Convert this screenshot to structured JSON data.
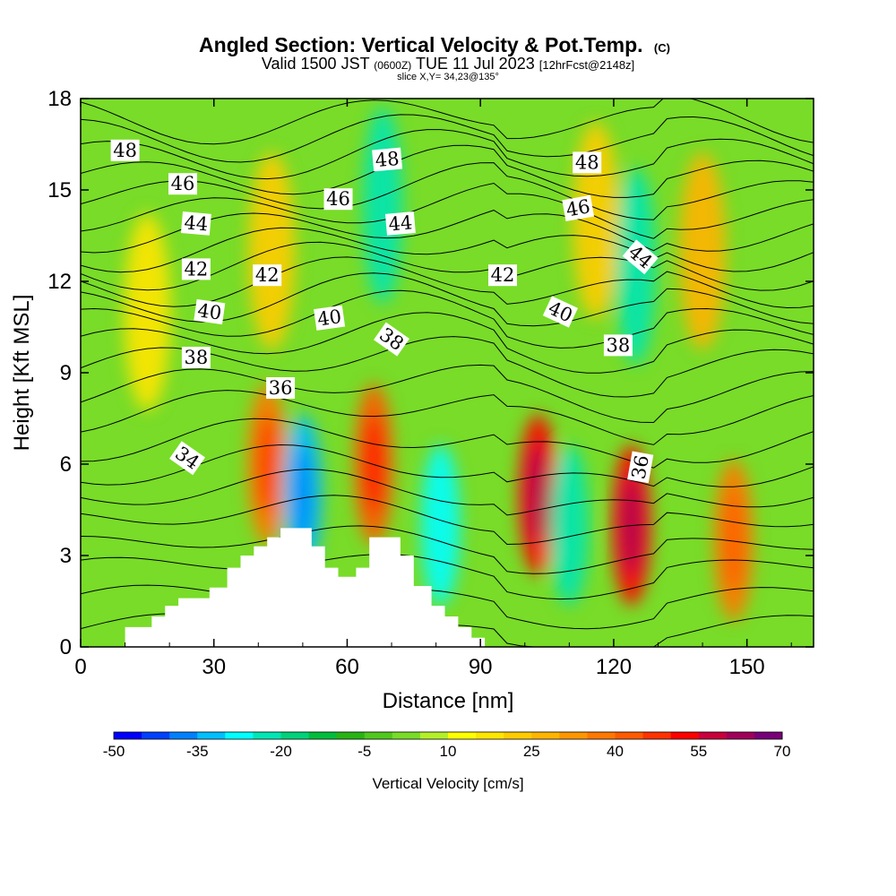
{
  "chart_data": {
    "type": "heatmap",
    "title": "Angled Section: Vertical Velocity & Pot.Temp.",
    "title_mark": "(C)",
    "subtitle_a": "Valid 1500 JST",
    "subtitle_b": "(0600Z)",
    "subtitle_c": "TUE 11 Jul 2023",
    "subtitle_d": "[12hrFcst@2148z]",
    "subtitle_line2": "slice X,Y= 34,23@135°",
    "xlabel": "Distance [nm]",
    "ylabel": "Height [Kft MSL]",
    "xlim": [
      0,
      165
    ],
    "ylim": [
      0,
      18
    ],
    "x_ticks": [
      "0",
      "30",
      "60",
      "90",
      "120",
      "150"
    ],
    "y_ticks": [
      "0",
      "3",
      "6",
      "9",
      "12",
      "15",
      "18"
    ],
    "colorbar": {
      "label": "Vertical Velocity [cm/s]",
      "tick_labels": [
        "-50",
        "-35",
        "-20",
        "-5",
        "10",
        "25",
        "40",
        "55",
        "70"
      ],
      "levels": [
        -50,
        -45,
        -40,
        -35,
        -30,
        -25,
        -20,
        -15,
        -10,
        -5,
        0,
        5,
        10,
        15,
        20,
        25,
        30,
        35,
        40,
        45,
        50,
        55,
        60,
        65,
        70
      ],
      "colors": [
        "#0000ff",
        "#0040ff",
        "#0080ff",
        "#00bfff",
        "#00ffff",
        "#00e6b4",
        "#00d27a",
        "#00be3c",
        "#28b414",
        "#50c81e",
        "#78dc28",
        "#b4f028",
        "#ffff00",
        "#ffe600",
        "#ffcc00",
        "#ffb400",
        "#ff9600",
        "#ff7800",
        "#ff5a00",
        "#ff3200",
        "#ff0000",
        "#c8003c",
        "#a0005a",
        "#780078"
      ]
    },
    "velocity_features": [
      {
        "x": 15,
        "y": 11,
        "value": 15
      },
      {
        "x": 42,
        "y": 6,
        "value": 38
      },
      {
        "x": 43,
        "y": 13,
        "value": 20
      },
      {
        "x": 50,
        "y": 5,
        "value": -32
      },
      {
        "x": 66,
        "y": 6,
        "value": 42
      },
      {
        "x": 68,
        "y": 14.5,
        "value": -25
      },
      {
        "x": 81,
        "y": 4,
        "value": -30
      },
      {
        "x": 103,
        "y": 5,
        "value": 52
      },
      {
        "x": 110,
        "y": 4,
        "value": -22
      },
      {
        "x": 116,
        "y": 14,
        "value": 20
      },
      {
        "x": 124,
        "y": 4,
        "value": 52
      },
      {
        "x": 125,
        "y": 12.5,
        "value": -25
      },
      {
        "x": 140,
        "y": 13,
        "value": 28
      },
      {
        "x": 147,
        "y": 3.5,
        "value": 35
      }
    ],
    "isentrope_labels": [
      {
        "text": "48",
        "x": 10,
        "y": 16.3,
        "angle": 0
      },
      {
        "text": "46",
        "x": 23,
        "y": 15.2,
        "angle": 0
      },
      {
        "text": "44",
        "x": 26,
        "y": 13.9,
        "angle": 5
      },
      {
        "text": "42",
        "x": 26,
        "y": 12.4,
        "angle": 0
      },
      {
        "text": "40",
        "x": 29,
        "y": 11.0,
        "angle": 8
      },
      {
        "text": "38",
        "x": 26,
        "y": 9.5,
        "angle": 0
      },
      {
        "text": "34",
        "x": 24,
        "y": 6.2,
        "angle": 35
      },
      {
        "text": "42",
        "x": 42,
        "y": 12.2,
        "angle": 0
      },
      {
        "text": "36",
        "x": 45,
        "y": 8.5,
        "angle": 0
      },
      {
        "text": "46",
        "x": 58,
        "y": 14.7,
        "angle": 0
      },
      {
        "text": "40",
        "x": 56,
        "y": 10.8,
        "angle": -8
      },
      {
        "text": "48",
        "x": 69,
        "y": 16.0,
        "angle": -5
      },
      {
        "text": "44",
        "x": 72,
        "y": 13.9,
        "angle": -5
      },
      {
        "text": "38",
        "x": 70,
        "y": 10.1,
        "angle": 35
      },
      {
        "text": "42",
        "x": 95,
        "y": 12.2,
        "angle": 0
      },
      {
        "text": "40",
        "x": 108,
        "y": 11.0,
        "angle": 25
      },
      {
        "text": "48",
        "x": 114,
        "y": 15.9,
        "angle": 0
      },
      {
        "text": "46",
        "x": 112,
        "y": 14.4,
        "angle": -10
      },
      {
        "text": "44",
        "x": 126,
        "y": 12.8,
        "angle": 40
      },
      {
        "text": "38",
        "x": 121,
        "y": 9.9,
        "angle": 0
      },
      {
        "text": "36",
        "x": 126,
        "y": 5.9,
        "angle": -80
      }
    ],
    "terrain_profile": [
      [
        0,
        0
      ],
      [
        10,
        0
      ],
      [
        10,
        0.65
      ],
      [
        16,
        0.65
      ],
      [
        16,
        1.0
      ],
      [
        19,
        1.0
      ],
      [
        19,
        1.35
      ],
      [
        22,
        1.35
      ],
      [
        22,
        1.6
      ],
      [
        29,
        1.6
      ],
      [
        29,
        1.95
      ],
      [
        33,
        1.95
      ],
      [
        33,
        2.6
      ],
      [
        36,
        2.6
      ],
      [
        36,
        3.0
      ],
      [
        39,
        3.0
      ],
      [
        39,
        3.3
      ],
      [
        42,
        3.3
      ],
      [
        42,
        3.6
      ],
      [
        45,
        3.6
      ],
      [
        45,
        3.9
      ],
      [
        52,
        3.9
      ],
      [
        52,
        3.3
      ],
      [
        55,
        3.3
      ],
      [
        55,
        2.6
      ],
      [
        58,
        2.6
      ],
      [
        58,
        2.3
      ],
      [
        62,
        2.3
      ],
      [
        62,
        2.6
      ],
      [
        65,
        2.6
      ],
      [
        65,
        3.6
      ],
      [
        72,
        3.6
      ],
      [
        72,
        3.0
      ],
      [
        75,
        3.0
      ],
      [
        75,
        2.0
      ],
      [
        79,
        2.0
      ],
      [
        79,
        1.35
      ],
      [
        82,
        1.35
      ],
      [
        82,
        1.0
      ],
      [
        85,
        1.0
      ],
      [
        85,
        0.65
      ],
      [
        88,
        0.65
      ],
      [
        88,
        0.3
      ],
      [
        91,
        0.3
      ],
      [
        91,
        0
      ]
    ]
  }
}
